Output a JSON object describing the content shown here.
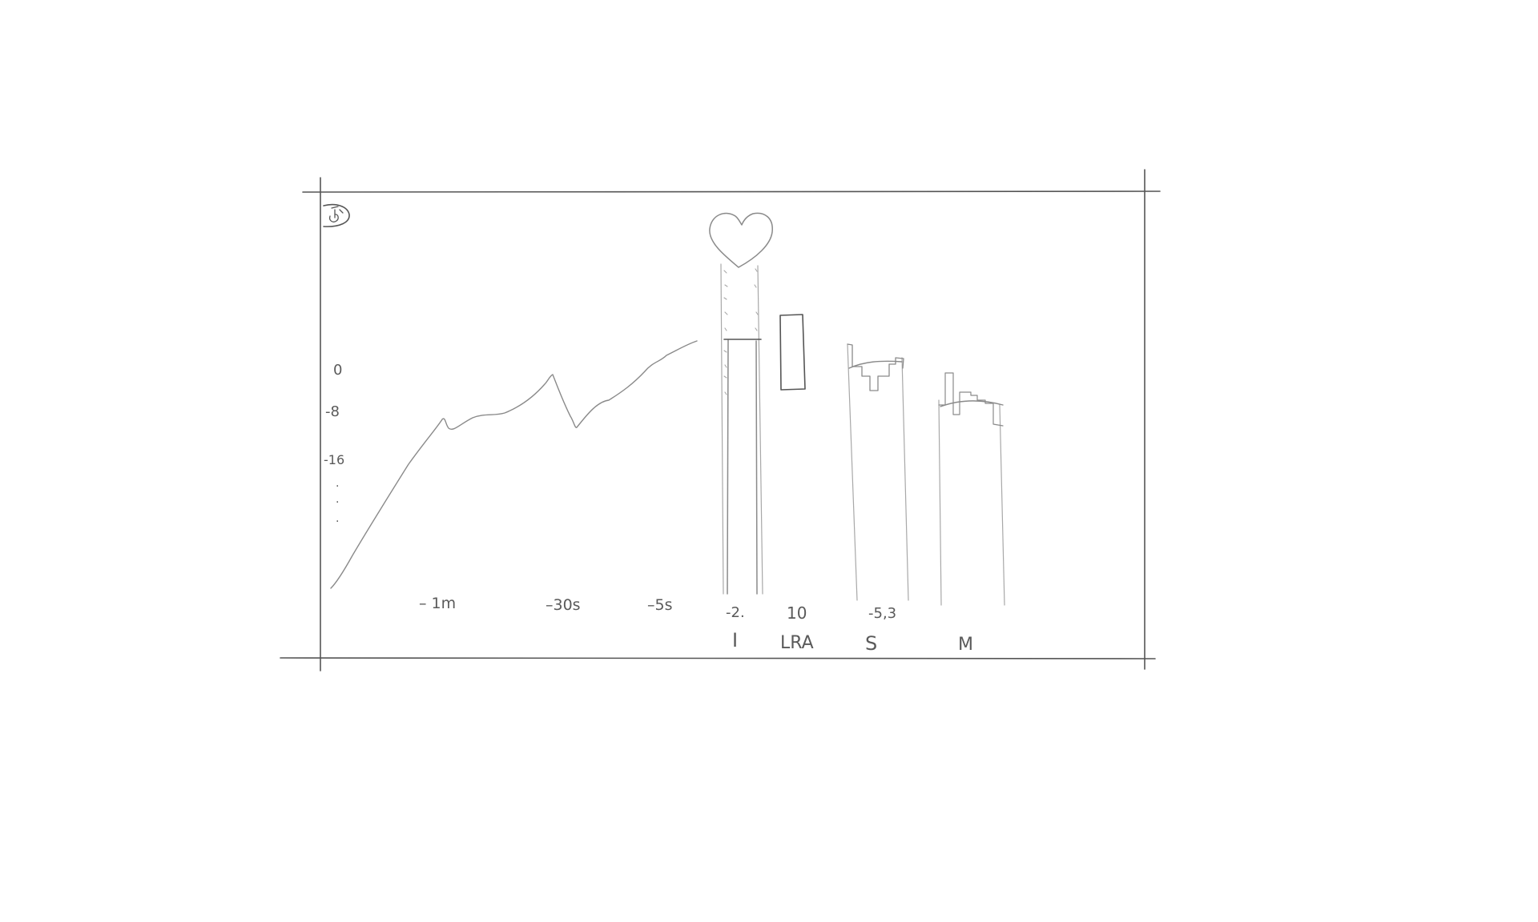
{
  "scale": {
    "ticks": [
      "0",
      "-8",
      "-16"
    ],
    "dots": [
      "·",
      "·",
      "·"
    ]
  },
  "history": {
    "time_labels": [
      "– 1m",
      "–30s",
      "–5s"
    ]
  },
  "meters": [
    {
      "id": "integrated",
      "value": "-2.",
      "label": "I"
    },
    {
      "id": "loudness-range",
      "value": "10",
      "label": "LRA"
    },
    {
      "id": "short-term",
      "value": "-5,3",
      "label": "S"
    },
    {
      "id": "momentary",
      "value": "",
      "label": "M"
    }
  ],
  "colors": {
    "pencil": "#6e6e6e",
    "faint": "#a8a8a8",
    "paper": "#ffffff"
  }
}
